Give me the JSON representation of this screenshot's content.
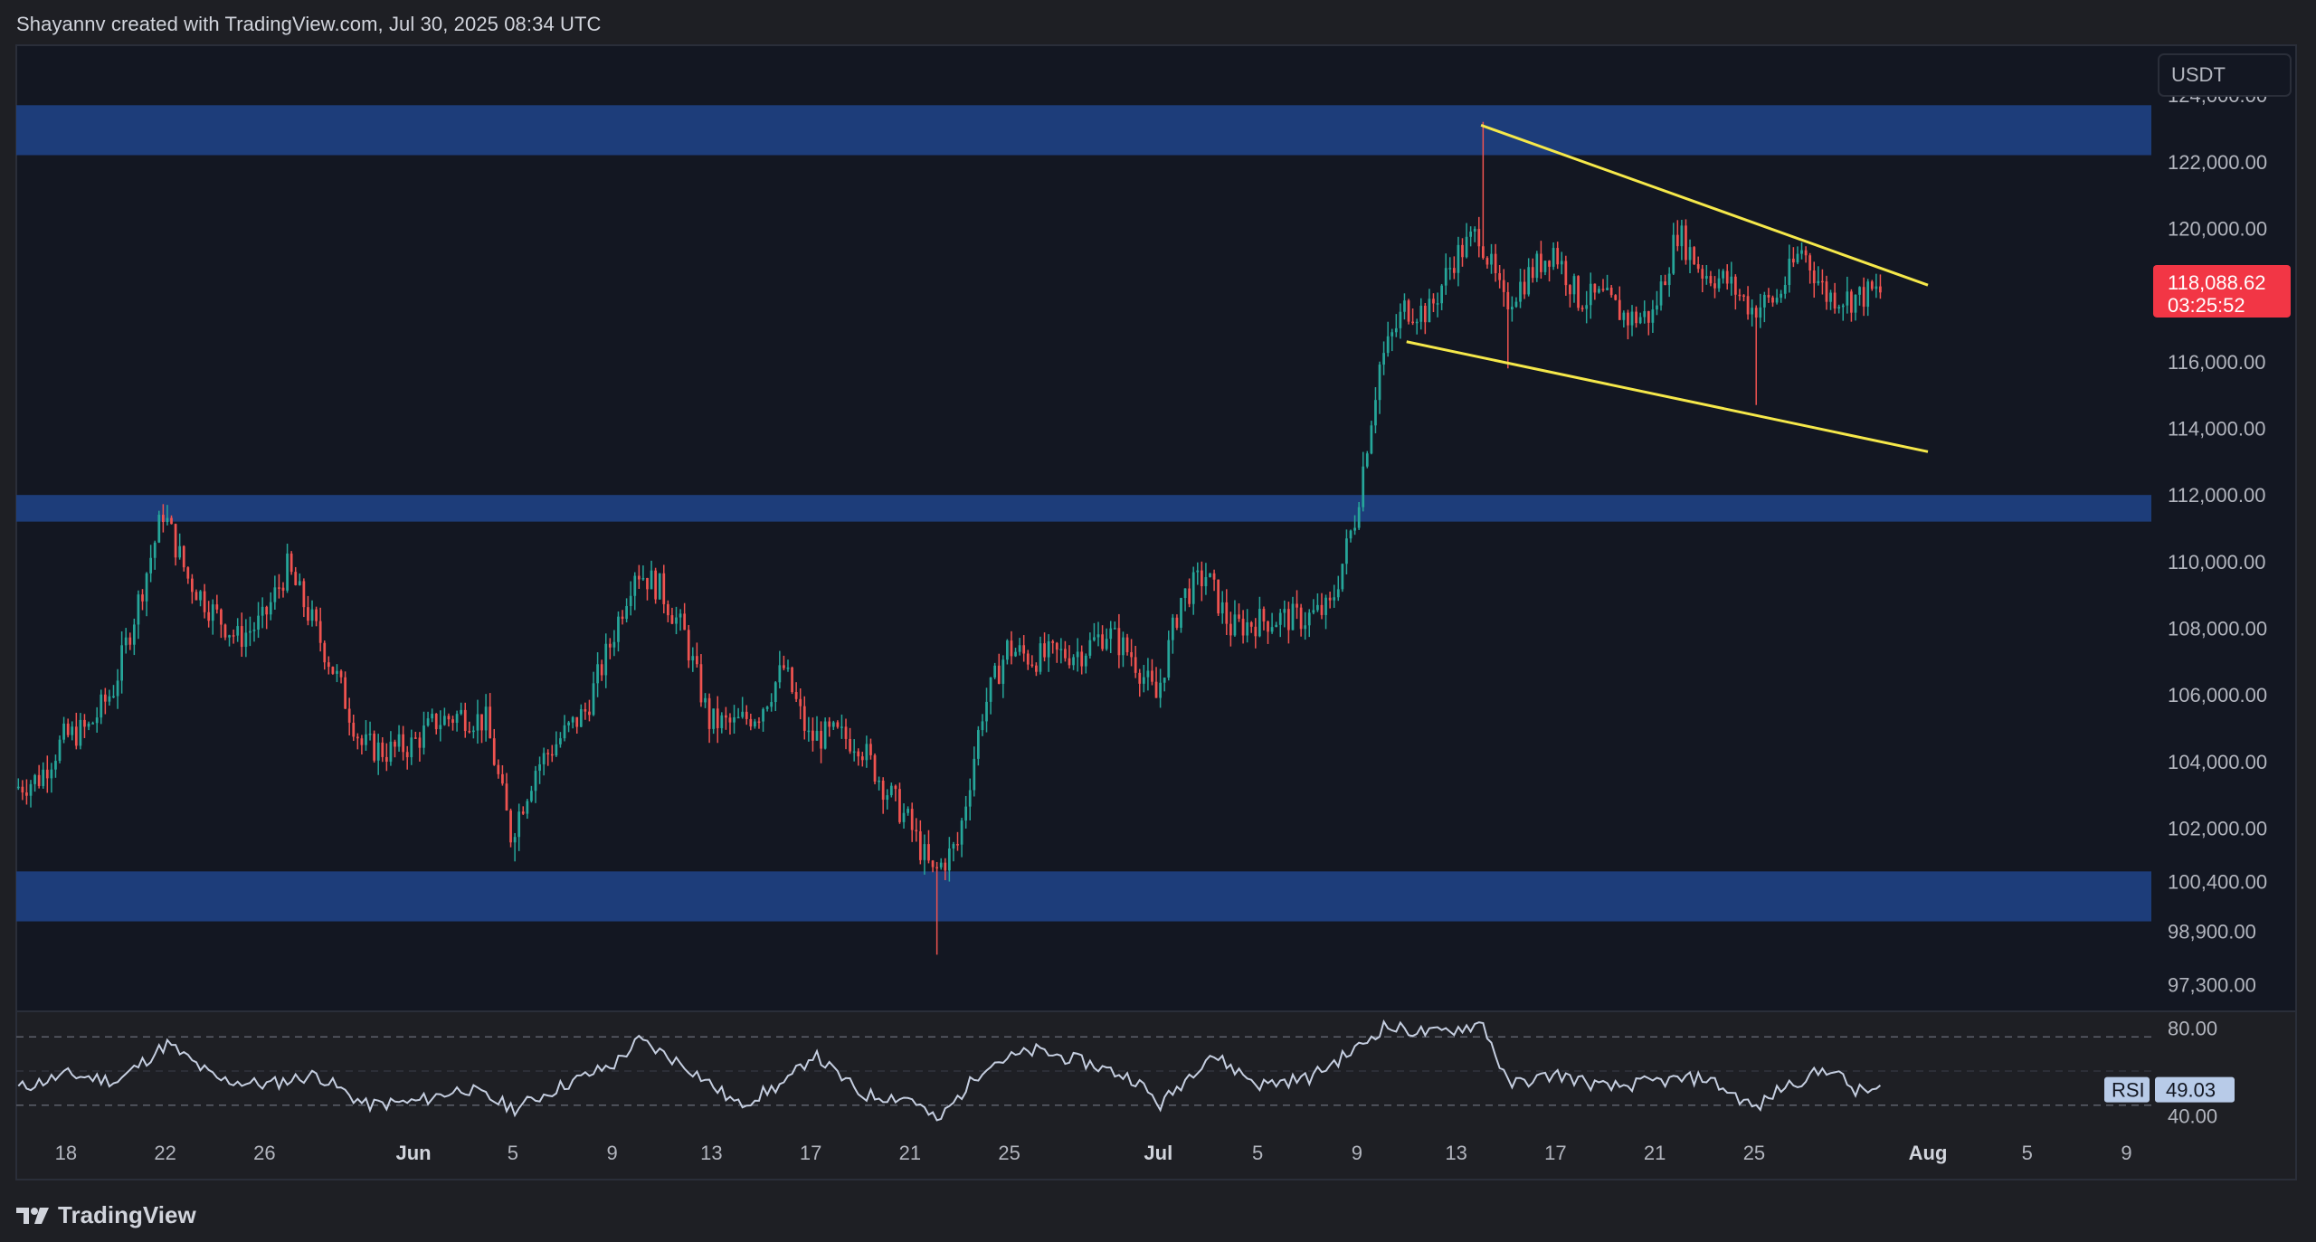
{
  "header": {
    "attribution": "Shayannv created with TradingView.com, Jul 30, 2025 08:34 UTC"
  },
  "footer": {
    "brand": "TradingView"
  },
  "price_scale": {
    "currency": "USDT",
    "labels": [
      "124,000.00",
      "122,000.00",
      "120,000.00",
      "118,088.62",
      "116,000.00",
      "114,000.00",
      "112,000.00",
      "110,000.00",
      "108,000.00",
      "106,000.00",
      "104,000.00",
      "102,000.00",
      "100,400.00",
      "98,900.00",
      "97,300.00"
    ]
  },
  "last_price": {
    "value": "118,088.62",
    "countdown": "03:25:52",
    "color": "#f23645"
  },
  "colors": {
    "background": "#131722",
    "zone": "#1e3f80",
    "up_candle": "#26a69a",
    "down_candle": "#ef5350",
    "trendline": "#f5e84a",
    "rsi_line": "#c5cee0"
  },
  "chart_data": {
    "type": "candlestick",
    "symbol_quote": "USDT",
    "x_start": "2025-05-16",
    "x_end": "2025-08-10",
    "candle_interval_hours": 4,
    "ylim": [
      96500,
      125500
    ],
    "y_ticks": [
      124000,
      122000,
      120000,
      116000,
      114000,
      112000,
      110000,
      108000,
      106000,
      104000,
      102000,
      100400,
      98900,
      97300
    ],
    "x_tick_labels": [
      {
        "date": "2025-05-18",
        "label": "18"
      },
      {
        "date": "2025-05-22",
        "label": "22"
      },
      {
        "date": "2025-05-26",
        "label": "26"
      },
      {
        "date": "2025-06-01",
        "label": "Jun",
        "major": true
      },
      {
        "date": "2025-06-05",
        "label": "5"
      },
      {
        "date": "2025-06-09",
        "label": "9"
      },
      {
        "date": "2025-06-13",
        "label": "13"
      },
      {
        "date": "2025-06-17",
        "label": "17"
      },
      {
        "date": "2025-06-21",
        "label": "21"
      },
      {
        "date": "2025-06-25",
        "label": "25"
      },
      {
        "date": "2025-07-01",
        "label": "Jul",
        "major": true
      },
      {
        "date": "2025-07-05",
        "label": "5"
      },
      {
        "date": "2025-07-09",
        "label": "9"
      },
      {
        "date": "2025-07-13",
        "label": "13"
      },
      {
        "date": "2025-07-17",
        "label": "17"
      },
      {
        "date": "2025-07-21",
        "label": "21"
      },
      {
        "date": "2025-07-25",
        "label": "25"
      },
      {
        "date": "2025-08-01",
        "label": "Aug",
        "major": true
      },
      {
        "date": "2025-08-05",
        "label": "5"
      },
      {
        "date": "2025-08-09",
        "label": "9"
      }
    ],
    "close_path": [
      {
        "date": "2025-05-16",
        "close": 103200
      },
      {
        "date": "2025-05-17",
        "close": 103500
      },
      {
        "date": "2025-05-18",
        "close": 104700
      },
      {
        "date": "2025-05-19",
        "close": 105000
      },
      {
        "date": "2025-05-20",
        "close": 106200
      },
      {
        "date": "2025-05-21",
        "close": 108800
      },
      {
        "date": "2025-05-22",
        "close": 111500
      },
      {
        "date": "2025-05-23",
        "close": 109500
      },
      {
        "date": "2025-05-24",
        "close": 108500
      },
      {
        "date": "2025-05-25",
        "close": 107700
      },
      {
        "date": "2025-05-26",
        "close": 108200
      },
      {
        "date": "2025-05-27",
        "close": 109800
      },
      {
        "date": "2025-05-28",
        "close": 108200
      },
      {
        "date": "2025-05-29",
        "close": 106500
      },
      {
        "date": "2025-05-30",
        "close": 104500
      },
      {
        "date": "2025-05-31",
        "close": 104300
      },
      {
        "date": "2025-06-01",
        "close": 104500
      },
      {
        "date": "2025-06-02",
        "close": 105200
      },
      {
        "date": "2025-06-03",
        "close": 105400
      },
      {
        "date": "2025-06-04",
        "close": 105200
      },
      {
        "date": "2025-06-05",
        "close": 101800
      },
      {
        "date": "2025-06-06",
        "close": 103800
      },
      {
        "date": "2025-06-07",
        "close": 104700
      },
      {
        "date": "2025-06-08",
        "close": 105500
      },
      {
        "date": "2025-06-09",
        "close": 107500
      },
      {
        "date": "2025-06-10",
        "close": 109800
      },
      {
        "date": "2025-06-11",
        "close": 109200
      },
      {
        "date": "2025-06-12",
        "close": 107800
      },
      {
        "date": "2025-06-13",
        "close": 105200
      },
      {
        "date": "2025-06-14",
        "close": 105100
      },
      {
        "date": "2025-06-15",
        "close": 105500
      },
      {
        "date": "2025-06-16",
        "close": 106800
      },
      {
        "date": "2025-06-17",
        "close": 104700
      },
      {
        "date": "2025-06-18",
        "close": 104800
      },
      {
        "date": "2025-06-19",
        "close": 104600
      },
      {
        "date": "2025-06-20",
        "close": 103300
      },
      {
        "date": "2025-06-21",
        "close": 102200
      },
      {
        "date": "2025-06-22",
        "close": 100600
      },
      {
        "date": "2025-06-23",
        "close": 101500
      },
      {
        "date": "2025-06-24",
        "close": 105500
      },
      {
        "date": "2025-06-25",
        "close": 107400
      },
      {
        "date": "2025-06-26",
        "close": 107100
      },
      {
        "date": "2025-06-27",
        "close": 107200
      },
      {
        "date": "2025-06-28",
        "close": 107300
      },
      {
        "date": "2025-06-29",
        "close": 107900
      },
      {
        "date": "2025-06-30",
        "close": 107200
      },
      {
        "date": "2025-07-01",
        "close": 105900
      },
      {
        "date": "2025-07-02",
        "close": 108900
      },
      {
        "date": "2025-07-03",
        "close": 109600
      },
      {
        "date": "2025-07-04",
        "close": 108000
      },
      {
        "date": "2025-07-05",
        "close": 108200
      },
      {
        "date": "2025-07-06",
        "close": 108300
      },
      {
        "date": "2025-07-07",
        "close": 108300
      },
      {
        "date": "2025-07-08",
        "close": 108600
      },
      {
        "date": "2025-07-09",
        "close": 111300
      },
      {
        "date": "2025-07-10",
        "close": 115900
      },
      {
        "date": "2025-07-11",
        "close": 117600
      },
      {
        "date": "2025-07-12",
        "close": 117500
      },
      {
        "date": "2025-07-13",
        "close": 119100
      },
      {
        "date": "2025-07-14",
        "close": 119900
      },
      {
        "date": "2025-07-15",
        "close": 117700
      },
      {
        "date": "2025-07-16",
        "close": 118600
      },
      {
        "date": "2025-07-17",
        "close": 119400
      },
      {
        "date": "2025-07-18",
        "close": 117900
      },
      {
        "date": "2025-07-19",
        "close": 117900
      },
      {
        "date": "2025-07-20",
        "close": 117300
      },
      {
        "date": "2025-07-21",
        "close": 117400
      },
      {
        "date": "2025-07-22",
        "close": 119900
      },
      {
        "date": "2025-07-23",
        "close": 118700
      },
      {
        "date": "2025-07-24",
        "close": 118400
      },
      {
        "date": "2025-07-25",
        "close": 117600
      },
      {
        "date": "2025-07-26",
        "close": 117900
      },
      {
        "date": "2025-07-27",
        "close": 119400
      },
      {
        "date": "2025-07-28",
        "close": 118000
      },
      {
        "date": "2025-07-29",
        "close": 117900
      },
      {
        "date": "2025-07-30",
        "close": 118088.62
      }
    ],
    "key_lows_highs": [
      {
        "date": "2025-06-05",
        "low": 101000
      },
      {
        "date": "2025-06-22",
        "low": 98200
      },
      {
        "date": "2025-07-14",
        "high": 123200
      },
      {
        "date": "2025-07-15",
        "low": 115800
      },
      {
        "date": "2025-07-25",
        "low": 114700
      }
    ],
    "zones": [
      {
        "low": 122200,
        "high": 123700
      },
      {
        "low": 111200,
        "high": 112000
      },
      {
        "low": 99200,
        "high": 100700
      }
    ],
    "trendlines": [
      {
        "name": "upper",
        "from": {
          "date": "2025-07-14",
          "price": 123100
        },
        "to": {
          "date": "2025-08-01",
          "price": 118300
        }
      },
      {
        "name": "lower",
        "from": {
          "date": "2025-07-11",
          "price": 116600
        },
        "to": {
          "date": "2025-08-01",
          "price": 113300
        }
      }
    ],
    "last_price": 118088.62,
    "rsi": {
      "label": "RSI",
      "value": "49.03",
      "levels": [
        80,
        40
      ],
      "level_labels": [
        "80.00",
        "40.00"
      ],
      "ylim": [
        25,
        95
      ],
      "path": [
        {
          "date": "2025-05-16",
          "v": 50
        },
        {
          "date": "2025-05-18",
          "v": 58
        },
        {
          "date": "2025-05-20",
          "v": 54
        },
        {
          "date": "2025-05-22",
          "v": 76
        },
        {
          "date": "2025-05-24",
          "v": 55
        },
        {
          "date": "2025-05-26",
          "v": 52
        },
        {
          "date": "2025-05-28",
          "v": 58
        },
        {
          "date": "2025-05-30",
          "v": 40
        },
        {
          "date": "2025-06-01",
          "v": 42
        },
        {
          "date": "2025-06-03",
          "v": 50
        },
        {
          "date": "2025-06-05",
          "v": 38
        },
        {
          "date": "2025-06-07",
          "v": 52
        },
        {
          "date": "2025-06-09",
          "v": 64
        },
        {
          "date": "2025-06-10",
          "v": 78
        },
        {
          "date": "2025-06-12",
          "v": 62
        },
        {
          "date": "2025-06-14",
          "v": 40
        },
        {
          "date": "2025-06-16",
          "v": 54
        },
        {
          "date": "2025-06-17",
          "v": 70
        },
        {
          "date": "2025-06-19",
          "v": 46
        },
        {
          "date": "2025-06-21",
          "v": 44
        },
        {
          "date": "2025-06-22",
          "v": 30
        },
        {
          "date": "2025-06-24",
          "v": 64
        },
        {
          "date": "2025-06-26",
          "v": 72
        },
        {
          "date": "2025-06-28",
          "v": 65
        },
        {
          "date": "2025-06-30",
          "v": 55
        },
        {
          "date": "2025-07-01",
          "v": 40
        },
        {
          "date": "2025-07-03",
          "v": 70
        },
        {
          "date": "2025-07-05",
          "v": 52
        },
        {
          "date": "2025-07-07",
          "v": 56
        },
        {
          "date": "2025-07-09",
          "v": 74
        },
        {
          "date": "2025-07-10",
          "v": 86
        },
        {
          "date": "2025-07-12",
          "v": 82
        },
        {
          "date": "2025-07-14",
          "v": 88
        },
        {
          "date": "2025-07-15",
          "v": 52
        },
        {
          "date": "2025-07-17",
          "v": 58
        },
        {
          "date": "2025-07-19",
          "v": 50
        },
        {
          "date": "2025-07-21",
          "v": 54
        },
        {
          "date": "2025-07-23",
          "v": 56
        },
        {
          "date": "2025-07-25",
          "v": 38
        },
        {
          "date": "2025-07-26",
          "v": 50
        },
        {
          "date": "2025-07-28",
          "v": 62
        },
        {
          "date": "2025-07-29",
          "v": 48
        },
        {
          "date": "2025-07-30",
          "v": 49.03
        }
      ]
    }
  }
}
